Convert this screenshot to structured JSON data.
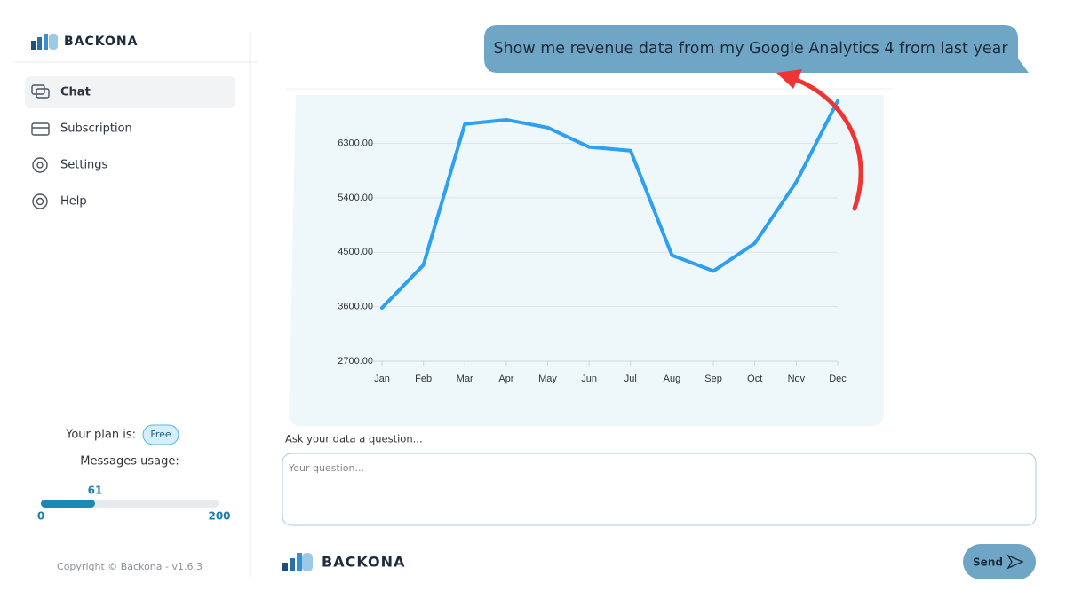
{
  "sidebar": {
    "brand": "BACKONA",
    "nav": [
      "Chat",
      "Subscription",
      "Settings",
      "Help"
    ],
    "plan_label": "Your plan is:",
    "plan": "Free",
    "usage_label": "Messages usage:",
    "usage": 61,
    "usage_min": 0,
    "usage_max": 200,
    "copyright": "Copyright © Backona - v1.6.3"
  },
  "chat": {
    "user_message": "Show me revenue data from my Google Analytics 4 from last year",
    "prompt_label": "Ask your data a question...",
    "placeholder": "Your question...",
    "send": "Send",
    "brand": "BACKONA"
  },
  "chart_data": {
    "type": "line",
    "categories": [
      "Jan",
      "Feb",
      "Mar",
      "Apr",
      "May",
      "Jun",
      "Jul",
      "Aug",
      "Sep",
      "Oct",
      "Nov",
      "Dec"
    ],
    "values": [
      3580,
      4290,
      6620,
      6690,
      6560,
      6240,
      6180,
      4450,
      4190,
      4650,
      5660,
      7000
    ],
    "color": "#2f9ff0",
    "ylim": [
      2700,
      7100
    ],
    "yticks": [
      {
        "value": 2700,
        "label": "2700.00"
      },
      {
        "value": 3600,
        "label": "3600.00"
      },
      {
        "value": 4500,
        "label": "4500.00"
      },
      {
        "value": 5400,
        "label": "5400.00"
      },
      {
        "value": 6300,
        "label": "6300.00"
      }
    ],
    "grid": true
  }
}
